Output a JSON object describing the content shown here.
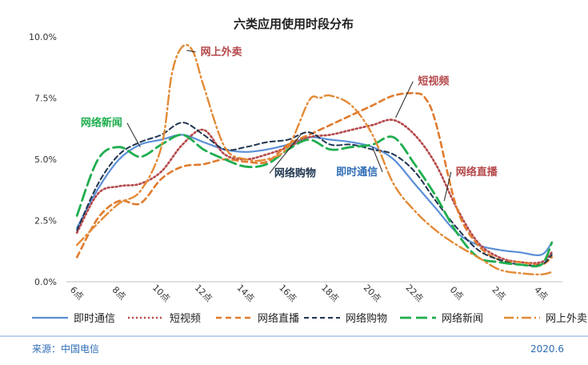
{
  "chart_data": {
    "type": "line",
    "title": "六类应用使用时段分布",
    "x_ticks": [
      "6点",
      "8点",
      "10点",
      "12点",
      "14点",
      "16点",
      "18点",
      "20点",
      "22点",
      "0点",
      "2点",
      "4点"
    ],
    "x_hours": [
      6,
      8,
      10,
      12,
      14,
      16,
      18,
      20,
      22,
      24,
      26,
      28
    ],
    "y_ticks": [
      "0.0%",
      "2.5%",
      "5.0%",
      "7.5%",
      "10.0%"
    ],
    "ylim": [
      0,
      10
    ],
    "grid": false,
    "legend_position": "bottom",
    "series": [
      {
        "name": "即时通信",
        "color": "#5b8fd6",
        "dash": "",
        "width": 2.2,
        "x": [
          6,
          7,
          8,
          9,
          10,
          11,
          12,
          13,
          14,
          15,
          16,
          17,
          18,
          19,
          20,
          21,
          22,
          23,
          24,
          25,
          26,
          27,
          28,
          28.5
        ],
        "y": [
          2.2,
          3.8,
          5.0,
          5.6,
          5.8,
          6.0,
          5.7,
          5.4,
          5.3,
          5.4,
          5.6,
          5.9,
          5.8,
          5.7,
          5.5,
          5.0,
          4.0,
          3.0,
          2.0,
          1.5,
          1.3,
          1.2,
          1.1,
          1.6
        ]
      },
      {
        "name": "短视频",
        "color": "#b5484a",
        "dash": "2,3",
        "width": 2.6,
        "x": [
          6,
          7,
          8,
          9,
          10,
          11,
          12,
          13,
          14,
          15,
          16,
          17,
          18,
          19,
          20,
          21,
          22,
          23,
          24,
          25,
          26,
          27,
          28,
          28.5
        ],
        "y": [
          2.0,
          3.6,
          3.9,
          4.0,
          4.5,
          5.6,
          6.2,
          5.2,
          5.0,
          5.2,
          5.5,
          5.9,
          6.0,
          6.2,
          6.4,
          6.6,
          6.0,
          4.8,
          3.0,
          1.6,
          1.0,
          0.8,
          0.8,
          1.2
        ]
      },
      {
        "name": "网络直播",
        "color": "#e07b2e",
        "dash": "7,5",
        "width": 2.6,
        "x": [
          6,
          7,
          8,
          9,
          10,
          11,
          12,
          13,
          14,
          15,
          16,
          17,
          18,
          19,
          20,
          21,
          22,
          22.5,
          23,
          24,
          25,
          26,
          27,
          28,
          28.5
        ],
        "y": [
          1.0,
          2.6,
          3.3,
          3.2,
          4.2,
          4.7,
          4.8,
          5.0,
          4.9,
          4.9,
          5.6,
          6.0,
          6.4,
          6.8,
          7.2,
          7.6,
          7.7,
          7.5,
          6.5,
          3.0,
          1.5,
          0.9,
          0.8,
          0.7,
          1.0
        ]
      },
      {
        "name": "网络购物",
        "color": "#1f3550",
        "dash": "6,4",
        "width": 2.0,
        "x": [
          6,
          7,
          8,
          9,
          10,
          11,
          12,
          13,
          14,
          15,
          16,
          17,
          18,
          19,
          20,
          21,
          22,
          23,
          24,
          25,
          26,
          27,
          28,
          28.5
        ],
        "y": [
          2.1,
          4.0,
          5.2,
          5.7,
          6.0,
          6.5,
          6.0,
          5.4,
          5.5,
          5.7,
          5.8,
          6.1,
          5.6,
          5.6,
          5.4,
          5.2,
          4.5,
          3.3,
          2.2,
          1.3,
          0.9,
          0.7,
          0.7,
          1.1
        ]
      },
      {
        "name": "网络新闻",
        "color": "#1fae4f",
        "dash": "14,6",
        "width": 2.8,
        "x": [
          6,
          7,
          8,
          9,
          10,
          11,
          12,
          13,
          14,
          15,
          16,
          17,
          18,
          19,
          20,
          21,
          22,
          23,
          24,
          25,
          26,
          27,
          28,
          28.5
        ],
        "y": [
          2.7,
          5.0,
          5.5,
          5.1,
          5.6,
          6.0,
          5.4,
          5.0,
          4.7,
          4.8,
          5.4,
          5.8,
          5.4,
          5.5,
          5.6,
          5.9,
          4.8,
          3.5,
          2.0,
          1.0,
          0.8,
          0.7,
          0.7,
          1.6
        ]
      },
      {
        "name": "网上外卖",
        "color": "#e38a36",
        "dash": "12,4,2,4",
        "width": 2.4,
        "x": [
          6,
          7,
          8,
          9,
          10,
          10.5,
          11,
          11.5,
          12,
          13,
          14,
          15,
          16,
          17,
          17.5,
          18,
          19,
          20,
          21,
          22,
          23,
          24,
          25,
          26,
          27,
          28,
          28.5
        ],
        "y": [
          1.5,
          2.4,
          3.2,
          3.7,
          5.5,
          8.5,
          9.6,
          9.4,
          8.0,
          5.5,
          5.0,
          5.0,
          5.5,
          7.4,
          7.5,
          7.6,
          7.2,
          6.0,
          4.0,
          2.9,
          2.1,
          1.5,
          1.0,
          0.5,
          0.35,
          0.3,
          0.4
        ]
      }
    ],
    "annotations": [
      {
        "text": "网上外卖",
        "color": "#b5484a"
      },
      {
        "text": "短视频",
        "color": "#b5484a"
      },
      {
        "text": "网络新闻",
        "color": "#1fae4f"
      },
      {
        "text": "网络直播",
        "color": "#b5484a"
      },
      {
        "text": "即时通信",
        "color": "#2f6db5"
      },
      {
        "text": "网络购物",
        "color": "#1f3550"
      }
    ]
  },
  "footer": {
    "source": "来源：中国电信",
    "date": "2020.6"
  }
}
